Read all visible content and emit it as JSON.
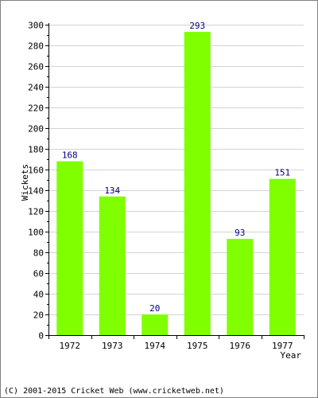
{
  "chart_data": {
    "type": "bar",
    "categories": [
      "1972",
      "1973",
      "1974",
      "1975",
      "1976",
      "1977"
    ],
    "values": [
      168,
      134,
      20,
      293,
      93,
      151
    ],
    "data_labels": [
      "168",
      "134",
      "20",
      "293",
      "93",
      "151"
    ],
    "title": "",
    "xlabel": "Year",
    "ylabel": "Wickets",
    "ylim": [
      0,
      300
    ],
    "yticks": [
      0,
      20,
      40,
      60,
      80,
      100,
      120,
      140,
      160,
      180,
      200,
      220,
      240,
      260,
      280,
      300
    ],
    "ytick_labels": [
      "0",
      "20",
      "40",
      "60",
      "80",
      "100",
      "120",
      "140",
      "160",
      "180",
      "200",
      "220",
      "240",
      "260",
      "280",
      "300"
    ],
    "grid": true,
    "legend": "none",
    "bar_color": "#7fff00",
    "label_color": "#000080",
    "grid_color": "#d3d3d3"
  },
  "footer": {
    "copyright": "(C) 2001-2015 Cricket Web (www.cricketweb.net)"
  }
}
